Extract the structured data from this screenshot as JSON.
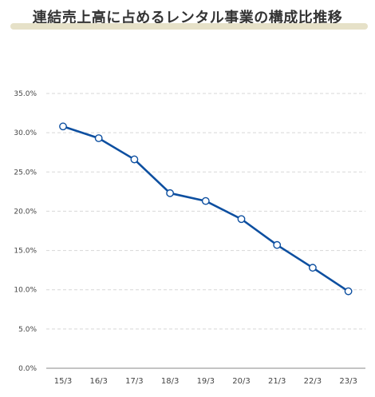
{
  "title": "連結売上高に占めるレンタル事業の構成比推移",
  "colors": {
    "line": "#0d4fa0",
    "title_bar": "#e6e1c8",
    "grid": "#d7d7d7",
    "axis": "#888888"
  },
  "chart_data": {
    "type": "line",
    "categories": [
      "15/3",
      "16/3",
      "17/3",
      "18/3",
      "19/3",
      "20/3",
      "21/3",
      "22/3",
      "23/3"
    ],
    "series": [
      {
        "values": [
          30.8,
          29.3,
          26.6,
          22.3,
          21.3,
          19.0,
          15.7,
          12.8,
          9.8
        ]
      }
    ],
    "yticks": [
      "0.0%",
      "5.0%",
      "10.0%",
      "15.0%",
      "20.0%",
      "25.0%",
      "30.0%",
      "35.0%"
    ],
    "ylim": [
      0,
      35
    ],
    "grid": true,
    "legend": "none"
  }
}
